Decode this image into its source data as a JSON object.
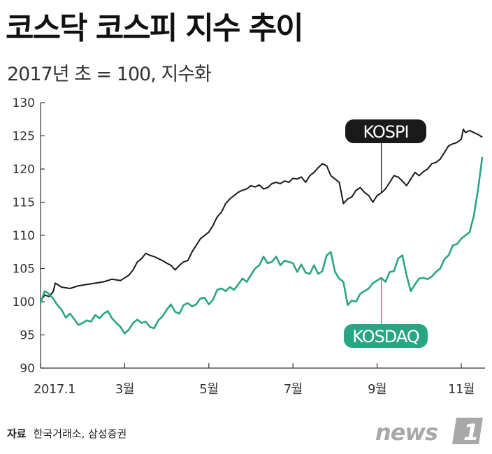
{
  "header": {
    "title": "코스닥 코스피 지수 추이",
    "subtitle": "2017년 초 = 100, 지수화"
  },
  "footer": {
    "source_label": "자료",
    "source_text": "한국거래소, 삼성증권",
    "logo_text": "news",
    "logo_mark": "1"
  },
  "colors": {
    "kospi": "#1a1a1a",
    "kosdaq": "#2aa584",
    "kospi_label_bg": "#1a1a1a",
    "kosdaq_label_bg": "#2aa584",
    "axis": "#333333",
    "logo": "#a8a8a8"
  },
  "chart_data": {
    "type": "line",
    "xlim": [
      1,
      12.2
    ],
    "ylim": [
      90,
      130
    ],
    "yticks": [
      90,
      95,
      100,
      105,
      110,
      115,
      120,
      125,
      130
    ],
    "xticks": [
      {
        "value": 1,
        "label": "2017.1"
      },
      {
        "value": 3,
        "label": "3월"
      },
      {
        "value": 5,
        "label": "5월"
      },
      {
        "value": 7,
        "label": "7월"
      },
      {
        "value": 9,
        "label": "9월"
      },
      {
        "value": 11,
        "label": "11월"
      }
    ],
    "series": [
      {
        "name": "KOSPI",
        "x": [
          1.0,
          1.1,
          1.2,
          1.3,
          1.35,
          1.5,
          1.7,
          1.9,
          2.1,
          2.3,
          2.5,
          2.7,
          2.9,
          3.0,
          3.1,
          3.2,
          3.3,
          3.4,
          3.5,
          3.6,
          3.7,
          3.8,
          3.9,
          4.0,
          4.1,
          4.2,
          4.3,
          4.4,
          4.5,
          4.6,
          4.7,
          4.8,
          4.9,
          5.0,
          5.1,
          5.2,
          5.3,
          5.4,
          5.5,
          5.6,
          5.7,
          5.8,
          5.9,
          6.0,
          6.1,
          6.2,
          6.3,
          6.4,
          6.5,
          6.6,
          6.7,
          6.8,
          6.9,
          7.0,
          7.1,
          7.2,
          7.3,
          7.4,
          7.5,
          7.6,
          7.7,
          7.8,
          7.9,
          8.0,
          8.1,
          8.2,
          8.3,
          8.4,
          8.5,
          8.6,
          8.7,
          8.8,
          8.9,
          9.0,
          9.1,
          9.2,
          9.3,
          9.4,
          9.5,
          9.6,
          9.7,
          9.8,
          9.9,
          10.0,
          10.1,
          10.2,
          10.3,
          10.4,
          10.5,
          10.6,
          10.7,
          10.8,
          10.9,
          11.0,
          11.05,
          11.1,
          11.2,
          11.3,
          11.4,
          11.5
        ],
        "values": [
          100.1,
          101.0,
          100.8,
          101.5,
          102.8,
          102.2,
          102.0,
          102.4,
          102.6,
          102.8,
          103.0,
          103.4,
          103.2,
          103.6,
          104.0,
          104.8,
          106.0,
          106.5,
          107.3,
          107.0,
          106.8,
          106.5,
          106.2,
          105.8,
          105.5,
          104.8,
          105.5,
          106.0,
          106.2,
          107.5,
          108.5,
          109.5,
          110.0,
          110.5,
          111.5,
          112.8,
          113.5,
          114.8,
          115.5,
          116.0,
          116.5,
          116.8,
          117.0,
          117.5,
          117.3,
          117.6,
          117.0,
          117.2,
          117.8,
          118.0,
          117.8,
          118.2,
          118.0,
          118.6,
          118.5,
          118.8,
          118.0,
          119.0,
          119.5,
          120.2,
          120.8,
          120.5,
          119.0,
          118.5,
          118.0,
          114.8,
          115.5,
          115.8,
          116.8,
          117.2,
          116.5,
          116.0,
          115.0,
          116.0,
          116.4,
          117.0,
          118.0,
          119.0,
          118.8,
          118.2,
          117.5,
          118.5,
          119.5,
          119.0,
          119.6,
          120.0,
          120.8,
          121.0,
          121.5,
          122.5,
          123.5,
          123.8,
          124.0,
          124.5,
          126.0,
          125.5,
          125.8,
          125.5,
          125.2,
          124.8
        ]
      },
      {
        "name": "KOSDAQ",
        "x": [
          1.0,
          1.1,
          1.2,
          1.3,
          1.4,
          1.5,
          1.6,
          1.7,
          1.8,
          1.9,
          2.0,
          2.1,
          2.2,
          2.3,
          2.4,
          2.5,
          2.6,
          2.7,
          2.8,
          2.9,
          3.0,
          3.1,
          3.2,
          3.3,
          3.4,
          3.5,
          3.6,
          3.7,
          3.8,
          3.9,
          4.0,
          4.1,
          4.2,
          4.3,
          4.4,
          4.5,
          4.6,
          4.7,
          4.8,
          4.9,
          5.0,
          5.1,
          5.2,
          5.3,
          5.4,
          5.5,
          5.6,
          5.7,
          5.8,
          5.9,
          6.0,
          6.1,
          6.2,
          6.3,
          6.4,
          6.5,
          6.6,
          6.7,
          6.8,
          6.9,
          7.0,
          7.1,
          7.2,
          7.3,
          7.4,
          7.5,
          7.6,
          7.7,
          7.8,
          7.9,
          8.0,
          8.1,
          8.2,
          8.3,
          8.4,
          8.5,
          8.6,
          8.7,
          8.8,
          8.9,
          9.0,
          9.1,
          9.2,
          9.3,
          9.4,
          9.5,
          9.6,
          9.7,
          9.8,
          9.9,
          10.0,
          10.1,
          10.2,
          10.3,
          10.4,
          10.5,
          10.6,
          10.7,
          10.8,
          10.9,
          11.0,
          11.1,
          11.2,
          11.3,
          11.4,
          11.5
        ],
        "values": [
          99.8,
          101.6,
          101.2,
          100.5,
          99.5,
          98.8,
          97.6,
          98.2,
          97.4,
          96.5,
          96.8,
          97.2,
          97.0,
          98.0,
          97.5,
          98.2,
          98.6,
          97.5,
          96.8,
          96.2,
          95.2,
          95.8,
          96.8,
          97.3,
          96.8,
          97.0,
          96.2,
          96.0,
          97.2,
          97.8,
          98.8,
          99.6,
          98.5,
          98.2,
          99.5,
          99.8,
          99.3,
          99.6,
          100.5,
          100.6,
          99.6,
          100.3,
          101.8,
          102.0,
          101.6,
          102.2,
          101.8,
          102.6,
          103.5,
          103.0,
          104.0,
          105.0,
          105.5,
          106.8,
          105.8,
          106.0,
          106.8,
          105.5,
          106.2,
          106.0,
          105.8,
          104.5,
          105.6,
          104.4,
          104.2,
          105.5,
          104.2,
          104.6,
          107.0,
          107.5,
          104.5,
          103.5,
          103.0,
          99.5,
          100.2,
          100.0,
          101.2,
          101.6,
          102.0,
          102.8,
          103.2,
          103.6,
          103.0,
          104.5,
          104.6,
          106.5,
          107.0,
          104.0,
          101.6,
          102.6,
          103.5,
          103.6,
          103.4,
          103.8,
          104.5,
          105.0,
          106.4,
          107.0,
          108.5,
          108.7,
          109.5,
          110.0,
          110.5,
          113.0,
          117.0,
          121.8
        ]
      }
    ],
    "annotations": [
      {
        "series": "KOSPI",
        "label": "KOSPI",
        "anchor_x": 9.1,
        "anchor_y": 116.4
      },
      {
        "series": "KOSDAQ",
        "label": "KOSDAQ",
        "anchor_x": 9.1,
        "anchor_y": 103.6
      }
    ],
    "grid": false
  }
}
